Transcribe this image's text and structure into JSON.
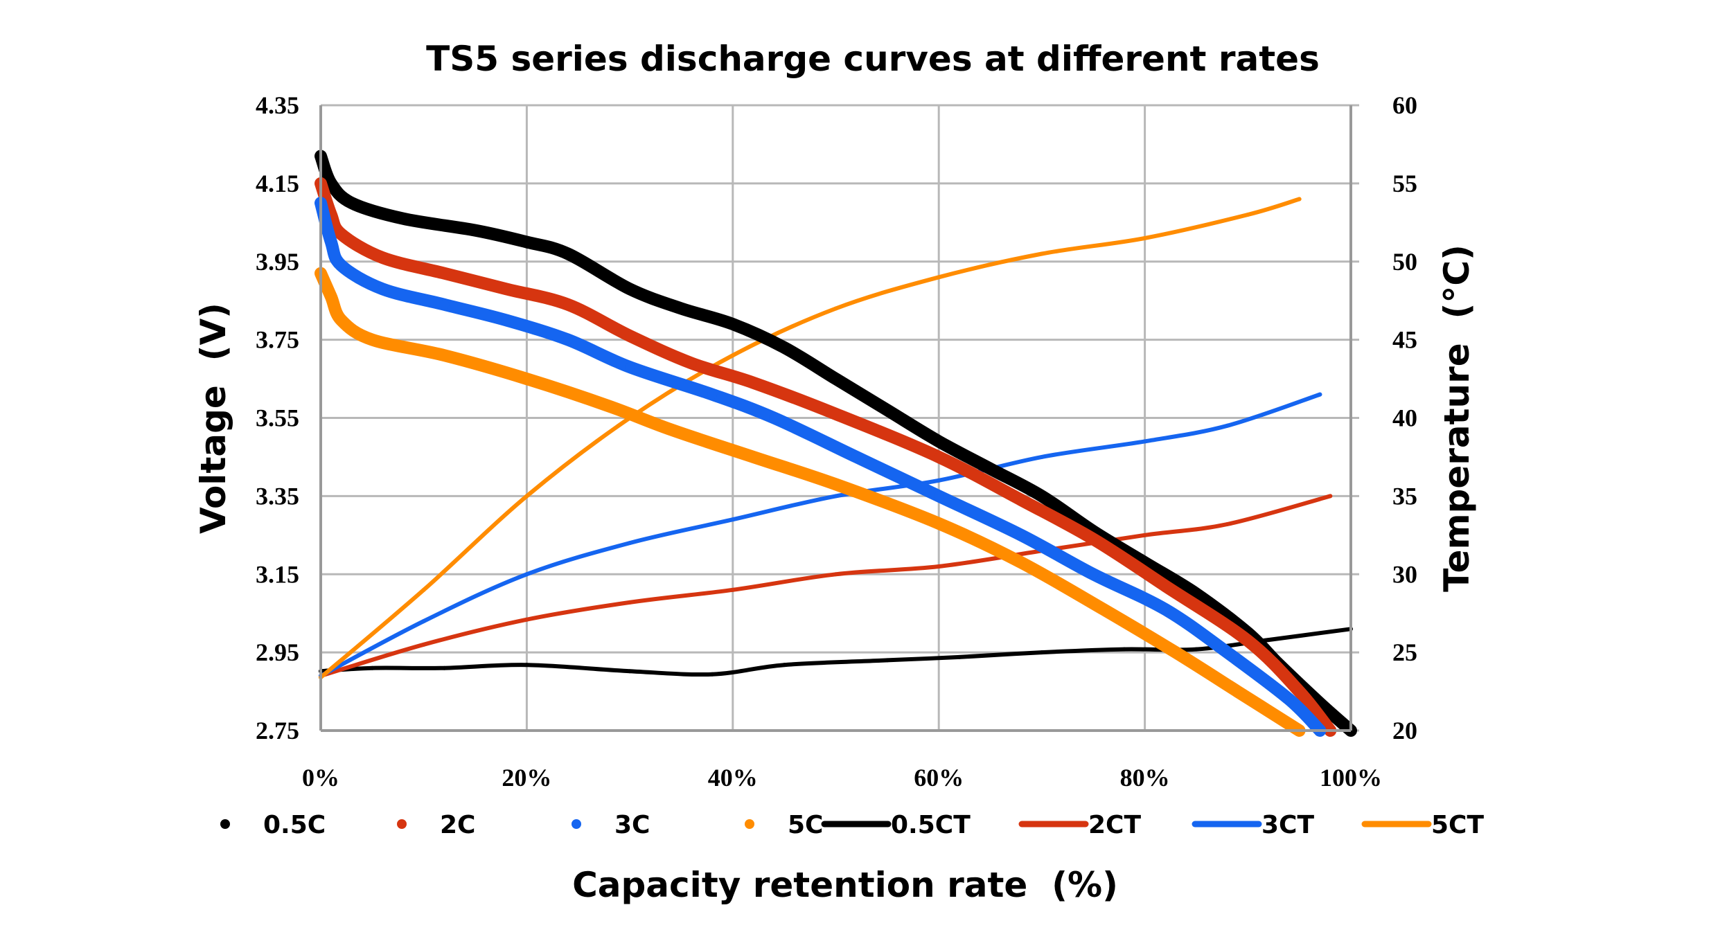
{
  "chart_data": {
    "type": "line",
    "title": "TS5 series discharge curves at different rates",
    "xlabel": "Capacity retention rate  (%)",
    "ylabel": "Voltage  (V)",
    "y2label": "Temperature  (°C)",
    "xlim": [
      0,
      100
    ],
    "ylim": [
      2.75,
      4.35
    ],
    "y2lim": [
      20,
      60
    ],
    "grid": true,
    "legend_position": "bottom",
    "x_ticks": [
      {
        "value": 0,
        "label": "0%"
      },
      {
        "value": 20,
        "label": "20%"
      },
      {
        "value": 40,
        "label": "40%"
      },
      {
        "value": 60,
        "label": "60%"
      },
      {
        "value": 80,
        "label": "80%"
      },
      {
        "value": 100,
        "label": "100%"
      }
    ],
    "y_ticks": [
      {
        "value": 4.35,
        "label": "4.35"
      },
      {
        "value": 4.15,
        "label": "4.15"
      },
      {
        "value": 3.95,
        "label": "3.95"
      },
      {
        "value": 3.75,
        "label": "3.75"
      },
      {
        "value": 3.55,
        "label": "3.55"
      },
      {
        "value": 3.35,
        "label": "3.35"
      },
      {
        "value": 3.15,
        "label": "3.15"
      },
      {
        "value": 2.95,
        "label": "2.95"
      },
      {
        "value": 2.75,
        "label": "2.75"
      }
    ],
    "y2_ticks": [
      {
        "value": 60,
        "label": "60"
      },
      {
        "value": 55,
        "label": "55"
      },
      {
        "value": 50,
        "label": "50"
      },
      {
        "value": 45,
        "label": "45"
      },
      {
        "value": 40,
        "label": "40"
      },
      {
        "value": 35,
        "label": "35"
      },
      {
        "value": 30,
        "label": "30"
      },
      {
        "value": 25,
        "label": "25"
      },
      {
        "value": 20,
        "label": "20"
      }
    ],
    "series": [
      {
        "name": "0.5C",
        "axis": "voltage",
        "style": "points",
        "color": "#000000",
        "x": [
          0,
          1,
          3,
          8,
          15,
          20,
          24,
          30,
          35,
          40,
          45,
          50,
          55,
          60,
          65,
          70,
          75,
          80,
          85,
          90,
          93,
          97,
          100
        ],
        "y": [
          4.22,
          4.15,
          4.1,
          4.06,
          4.03,
          4.0,
          3.97,
          3.88,
          3.83,
          3.79,
          3.73,
          3.65,
          3.57,
          3.49,
          3.42,
          3.35,
          3.26,
          3.18,
          3.1,
          3.0,
          2.92,
          2.82,
          2.75
        ]
      },
      {
        "name": "2C",
        "axis": "voltage",
        "style": "points",
        "color": "#d63510",
        "x": [
          0,
          1,
          2,
          6,
          12,
          18,
          24,
          30,
          36,
          42,
          50,
          60,
          68,
          75,
          82,
          90,
          95,
          98
        ],
        "y": [
          4.15,
          4.07,
          4.02,
          3.96,
          3.92,
          3.88,
          3.84,
          3.76,
          3.69,
          3.64,
          3.56,
          3.45,
          3.34,
          3.24,
          3.12,
          2.98,
          2.85,
          2.75
        ]
      },
      {
        "name": "3C",
        "axis": "voltage",
        "style": "points",
        "color": "#1565f0",
        "x": [
          0,
          1,
          2,
          6,
          12,
          18,
          24,
          30,
          38,
          44,
          52,
          60,
          68,
          75,
          82,
          88,
          94,
          97
        ],
        "y": [
          4.1,
          4.0,
          3.94,
          3.88,
          3.84,
          3.8,
          3.75,
          3.68,
          3.61,
          3.55,
          3.45,
          3.35,
          3.25,
          3.15,
          3.06,
          2.95,
          2.83,
          2.75
        ]
      },
      {
        "name": "5C",
        "axis": "voltage",
        "style": "points",
        "color": "#ff8c00",
        "x": [
          0,
          1,
          2,
          5,
          12,
          20,
          28,
          34,
          42,
          50,
          60,
          68,
          76,
          83,
          89,
          95
        ],
        "y": [
          3.92,
          3.86,
          3.8,
          3.75,
          3.71,
          3.65,
          3.58,
          3.52,
          3.45,
          3.38,
          3.28,
          3.18,
          3.06,
          2.95,
          2.85,
          2.75
        ]
      },
      {
        "name": "0.5CT",
        "axis": "temperature",
        "style": "line",
        "color": "#000000",
        "x": [
          0,
          5,
          12,
          20,
          30,
          38,
          45,
          55,
          62,
          70,
          78,
          85,
          92,
          100
        ],
        "y": [
          23.8,
          24.0,
          24.0,
          24.2,
          23.8,
          23.6,
          24.2,
          24.5,
          24.7,
          25.0,
          25.2,
          25.2,
          25.8,
          26.5
        ]
      },
      {
        "name": "2CT",
        "axis": "temperature",
        "style": "line",
        "color": "#d63510",
        "x": [
          0,
          10,
          20,
          30,
          40,
          50,
          60,
          70,
          80,
          88,
          98
        ],
        "y": [
          23.5,
          25.5,
          27.1,
          28.2,
          29.0,
          30.0,
          30.5,
          31.5,
          32.5,
          33.2,
          35.0
        ]
      },
      {
        "name": "3CT",
        "axis": "temperature",
        "style": "line",
        "color": "#1565f0",
        "x": [
          0,
          10,
          20,
          30,
          40,
          50,
          60,
          70,
          80,
          88,
          97
        ],
        "y": [
          23.5,
          27.0,
          30.0,
          32.0,
          33.5,
          35.0,
          36.0,
          37.5,
          38.5,
          39.5,
          41.5
        ]
      },
      {
        "name": "5CT",
        "axis": "temperature",
        "style": "line",
        "color": "#ff8c00",
        "x": [
          0,
          10,
          20,
          30,
          40,
          50,
          60,
          70,
          80,
          90,
          95
        ],
        "y": [
          23.4,
          29.0,
          35.0,
          40.0,
          44.0,
          47.0,
          49.0,
          50.5,
          51.5,
          53.0,
          54.0
        ]
      }
    ]
  }
}
